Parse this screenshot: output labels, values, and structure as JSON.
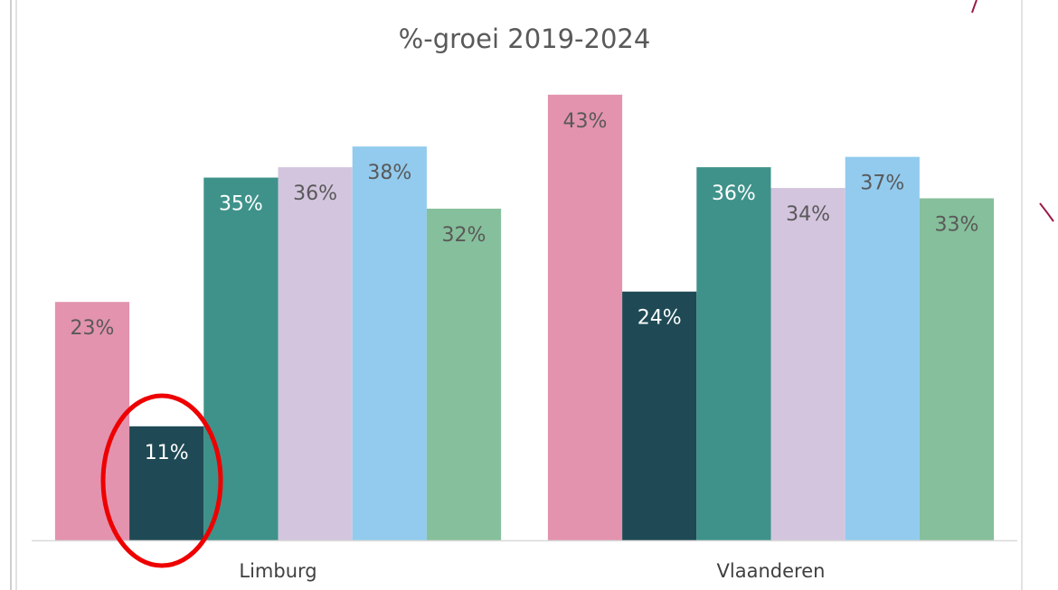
{
  "chart_data": {
    "type": "bar",
    "title": "%-groei 2019-2024",
    "categories": [
      "Limburg",
      "Vlaanderen"
    ],
    "series": [
      {
        "color": "#e393ae",
        "values": [
          23,
          43
        ],
        "value_labels": [
          "23%",
          "43%"
        ]
      },
      {
        "color": "#1f4a55",
        "values": [
          11,
          24
        ],
        "value_labels": [
          "11%",
          "24%"
        ]
      },
      {
        "color": "#3e928a",
        "values": [
          35,
          36
        ],
        "value_labels": [
          "35%",
          "36%"
        ]
      },
      {
        "color": "#d4c5df",
        "values": [
          36,
          34
        ],
        "value_labels": [
          "36%",
          "34%"
        ]
      },
      {
        "color": "#92cbee",
        "values": [
          38,
          37
        ],
        "value_labels": [
          "38%",
          "37%"
        ]
      },
      {
        "color": "#86bf9b",
        "values": [
          32,
          33
        ],
        "value_labels": [
          "32%",
          "33%"
        ]
      }
    ]
  }
}
